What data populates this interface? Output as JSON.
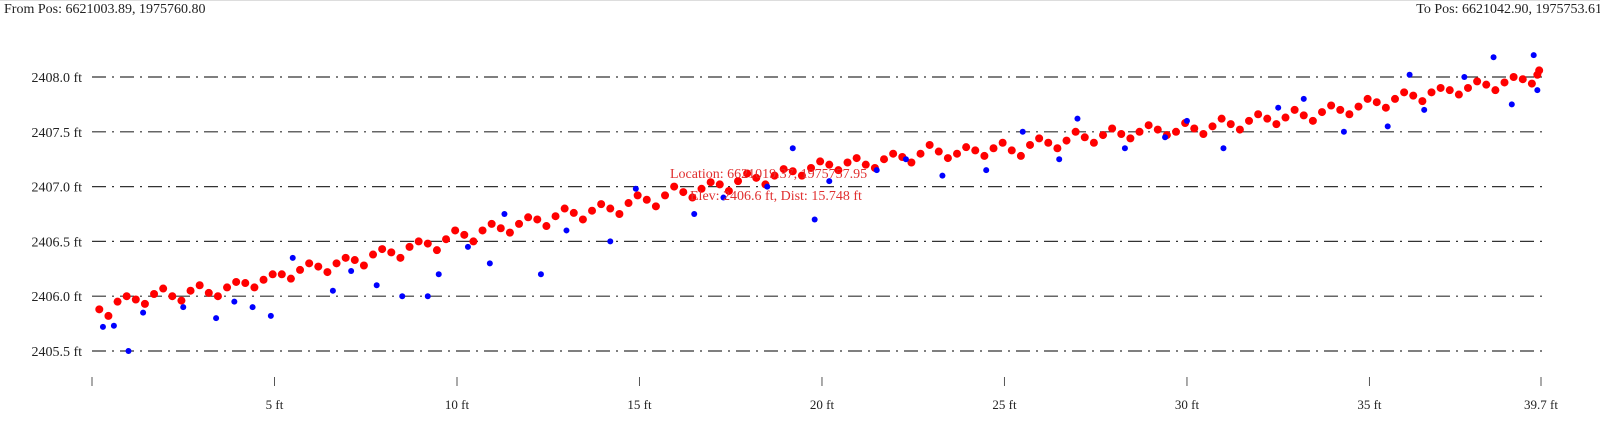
{
  "header": {
    "from_pos": "From Pos: 6621003.89, 1975760.80",
    "to_pos": "To Pos: 6621042.90, 1975753.61"
  },
  "annotation": {
    "location": "Location: 6621019.37, 1975757.95",
    "elev_dist": "Elev: 2406.6 ft, Dist: 15.748 ft"
  },
  "chart_data": {
    "type": "scatter",
    "xlim": [
      0,
      39.7
    ],
    "ylim": [
      2405.5,
      2408.0
    ],
    "grid": true,
    "x_ticks": [
      0,
      5,
      10,
      15,
      20,
      25,
      30,
      35,
      39.7
    ],
    "x_tick_labels": [
      "",
      "5 ft",
      "10 ft",
      "15 ft",
      "20 ft",
      "25 ft",
      "30 ft",
      "35 ft",
      "39.7 ft"
    ],
    "y_ticks": [
      2405.5,
      2406.0,
      2406.5,
      2407.0,
      2407.5,
      2408.0
    ],
    "y_tick_labels": [
      "2405.5 ft",
      "2406.0 ft",
      "2406.5 ft",
      "2407.0 ft",
      "2407.5 ft",
      "2408.0 ft"
    ],
    "series": [
      {
        "color": "#ff0000",
        "points": [
          [
            0.2,
            2405.88
          ],
          [
            0.7,
            2405.95
          ],
          [
            1.2,
            2405.97
          ],
          [
            1.7,
            2406.02
          ],
          [
            2.2,
            2406.0
          ],
          [
            2.7,
            2406.05
          ],
          [
            3.2,
            2406.03
          ],
          [
            3.7,
            2406.08
          ],
          [
            4.2,
            2406.12
          ],
          [
            4.7,
            2406.15
          ],
          [
            5.2,
            2406.2
          ],
          [
            5.7,
            2406.24
          ],
          [
            6.2,
            2406.27
          ],
          [
            6.7,
            2406.3
          ],
          [
            7.2,
            2406.33
          ],
          [
            7.7,
            2406.38
          ],
          [
            8.2,
            2406.4
          ],
          [
            8.7,
            2406.45
          ],
          [
            9.2,
            2406.48
          ],
          [
            9.7,
            2406.52
          ],
          [
            10.2,
            2406.56
          ],
          [
            10.7,
            2406.6
          ],
          [
            11.2,
            2406.62
          ],
          [
            11.7,
            2406.66
          ],
          [
            12.2,
            2406.7
          ],
          [
            12.7,
            2406.73
          ],
          [
            13.2,
            2406.76
          ],
          [
            13.7,
            2406.78
          ],
          [
            14.2,
            2406.8
          ],
          [
            14.7,
            2406.85
          ],
          [
            15.2,
            2406.88
          ],
          [
            15.7,
            2406.92
          ],
          [
            16.2,
            2406.95
          ],
          [
            16.7,
            2406.98
          ],
          [
            17.2,
            2407.02
          ],
          [
            17.7,
            2407.05
          ],
          [
            18.2,
            2407.08
          ],
          [
            18.7,
            2407.1
          ],
          [
            19.2,
            2407.14
          ],
          [
            19.7,
            2407.17
          ],
          [
            20.2,
            2407.2
          ],
          [
            20.7,
            2407.22
          ],
          [
            21.2,
            2407.2
          ],
          [
            21.7,
            2407.25
          ],
          [
            22.2,
            2407.27
          ],
          [
            22.7,
            2407.3
          ],
          [
            23.2,
            2407.32
          ],
          [
            23.7,
            2407.3
          ],
          [
            24.2,
            2407.33
          ],
          [
            24.7,
            2407.35
          ],
          [
            25.2,
            2407.33
          ],
          [
            25.7,
            2407.38
          ],
          [
            26.2,
            2407.4
          ],
          [
            26.7,
            2407.42
          ],
          [
            27.2,
            2407.45
          ],
          [
            27.7,
            2407.47
          ],
          [
            28.2,
            2407.48
          ],
          [
            28.7,
            2407.5
          ],
          [
            29.2,
            2407.52
          ],
          [
            29.7,
            2407.5
          ],
          [
            30.2,
            2407.53
          ],
          [
            30.7,
            2407.55
          ],
          [
            31.2,
            2407.57
          ],
          [
            31.7,
            2407.6
          ],
          [
            32.2,
            2407.62
          ],
          [
            32.7,
            2407.63
          ],
          [
            33.2,
            2407.65
          ],
          [
            33.7,
            2407.68
          ],
          [
            34.2,
            2407.7
          ],
          [
            34.7,
            2407.73
          ],
          [
            35.2,
            2407.77
          ],
          [
            35.7,
            2407.8
          ],
          [
            36.2,
            2407.83
          ],
          [
            36.7,
            2407.86
          ],
          [
            37.2,
            2407.88
          ],
          [
            37.7,
            2407.9
          ],
          [
            38.2,
            2407.93
          ],
          [
            38.7,
            2407.95
          ],
          [
            39.2,
            2407.98
          ],
          [
            39.6,
            2408.02
          ],
          [
            0.45,
            2405.82
          ],
          [
            0.95,
            2406.0
          ],
          [
            1.45,
            2405.93
          ],
          [
            1.95,
            2406.07
          ],
          [
            2.45,
            2405.96
          ],
          [
            2.95,
            2406.1
          ],
          [
            3.45,
            2406.0
          ],
          [
            3.95,
            2406.13
          ],
          [
            4.45,
            2406.08
          ],
          [
            4.95,
            2406.2
          ],
          [
            5.45,
            2406.16
          ],
          [
            5.95,
            2406.3
          ],
          [
            6.45,
            2406.22
          ],
          [
            6.95,
            2406.35
          ],
          [
            7.45,
            2406.28
          ],
          [
            7.95,
            2406.43
          ],
          [
            8.45,
            2406.35
          ],
          [
            8.95,
            2406.5
          ],
          [
            9.45,
            2406.42
          ],
          [
            9.95,
            2406.6
          ],
          [
            10.45,
            2406.5
          ],
          [
            10.95,
            2406.66
          ],
          [
            11.45,
            2406.58
          ],
          [
            11.95,
            2406.72
          ],
          [
            12.45,
            2406.64
          ],
          [
            12.95,
            2406.8
          ],
          [
            13.45,
            2406.7
          ],
          [
            13.95,
            2406.84
          ],
          [
            14.45,
            2406.75
          ],
          [
            14.95,
            2406.92
          ],
          [
            15.45,
            2406.82
          ],
          [
            15.95,
            2407.0
          ],
          [
            16.45,
            2406.9
          ],
          [
            16.95,
            2407.04
          ],
          [
            17.45,
            2406.96
          ],
          [
            17.95,
            2407.12
          ],
          [
            18.45,
            2407.02
          ],
          [
            18.95,
            2407.16
          ],
          [
            19.45,
            2407.1
          ],
          [
            19.95,
            2407.23
          ],
          [
            20.45,
            2407.15
          ],
          [
            20.95,
            2407.26
          ],
          [
            21.45,
            2407.17
          ],
          [
            21.95,
            2407.3
          ],
          [
            22.45,
            2407.22
          ],
          [
            22.95,
            2407.38
          ],
          [
            23.45,
            2407.26
          ],
          [
            23.95,
            2407.36
          ],
          [
            24.45,
            2407.28
          ],
          [
            24.95,
            2407.4
          ],
          [
            25.45,
            2407.28
          ],
          [
            25.95,
            2407.44
          ],
          [
            26.45,
            2407.35
          ],
          [
            26.95,
            2407.5
          ],
          [
            27.45,
            2407.4
          ],
          [
            27.95,
            2407.53
          ],
          [
            28.45,
            2407.44
          ],
          [
            28.95,
            2407.56
          ],
          [
            29.45,
            2407.47
          ],
          [
            29.95,
            2407.58
          ],
          [
            30.45,
            2407.48
          ],
          [
            30.95,
            2407.62
          ],
          [
            31.45,
            2407.52
          ],
          [
            31.95,
            2407.66
          ],
          [
            32.45,
            2407.57
          ],
          [
            32.95,
            2407.7
          ],
          [
            33.45,
            2407.6
          ],
          [
            33.95,
            2407.74
          ],
          [
            34.45,
            2407.66
          ],
          [
            34.95,
            2407.8
          ],
          [
            35.45,
            2407.72
          ],
          [
            35.95,
            2407.86
          ],
          [
            36.45,
            2407.78
          ],
          [
            36.95,
            2407.9
          ],
          [
            37.45,
            2407.84
          ],
          [
            37.95,
            2407.96
          ],
          [
            38.45,
            2407.88
          ],
          [
            38.95,
            2408.0
          ],
          [
            39.45,
            2407.94
          ],
          [
            39.65,
            2408.06
          ]
        ]
      },
      {
        "color": "#0000ff",
        "points": [
          [
            0.3,
            2405.72
          ],
          [
            0.6,
            2405.73
          ],
          [
            1.0,
            2405.5
          ],
          [
            1.4,
            2405.85
          ],
          [
            2.5,
            2405.9
          ],
          [
            3.4,
            2405.8
          ],
          [
            3.9,
            2405.95
          ],
          [
            4.4,
            2405.9
          ],
          [
            4.9,
            2405.82
          ],
          [
            5.5,
            2406.35
          ],
          [
            6.6,
            2406.05
          ],
          [
            7.1,
            2406.23
          ],
          [
            7.8,
            2406.1
          ],
          [
            8.5,
            2406.0
          ],
          [
            9.2,
            2406.0
          ],
          [
            9.5,
            2406.2
          ],
          [
            10.3,
            2406.45
          ],
          [
            10.9,
            2406.3
          ],
          [
            11.3,
            2406.75
          ],
          [
            12.3,
            2406.2
          ],
          [
            13.0,
            2406.6
          ],
          [
            14.2,
            2406.5
          ],
          [
            14.9,
            2406.98
          ],
          [
            16.5,
            2406.75
          ],
          [
            17.3,
            2406.9
          ],
          [
            18.5,
            2407.0
          ],
          [
            19.2,
            2407.35
          ],
          [
            19.8,
            2406.7
          ],
          [
            20.2,
            2407.05
          ],
          [
            21.5,
            2407.15
          ],
          [
            22.3,
            2407.25
          ],
          [
            23.3,
            2407.1
          ],
          [
            24.5,
            2407.15
          ],
          [
            25.5,
            2407.5
          ],
          [
            26.5,
            2407.25
          ],
          [
            27.0,
            2407.62
          ],
          [
            28.3,
            2407.35
          ],
          [
            29.4,
            2407.45
          ],
          [
            30.0,
            2407.6
          ],
          [
            31.0,
            2407.35
          ],
          [
            32.5,
            2407.72
          ],
          [
            33.2,
            2407.8
          ],
          [
            34.3,
            2407.5
          ],
          [
            35.5,
            2407.55
          ],
          [
            36.1,
            2408.02
          ],
          [
            36.5,
            2407.7
          ],
          [
            37.6,
            2408.0
          ],
          [
            38.4,
            2408.18
          ],
          [
            38.9,
            2407.75
          ],
          [
            39.5,
            2408.2
          ],
          [
            39.6,
            2407.88
          ]
        ]
      }
    ]
  }
}
